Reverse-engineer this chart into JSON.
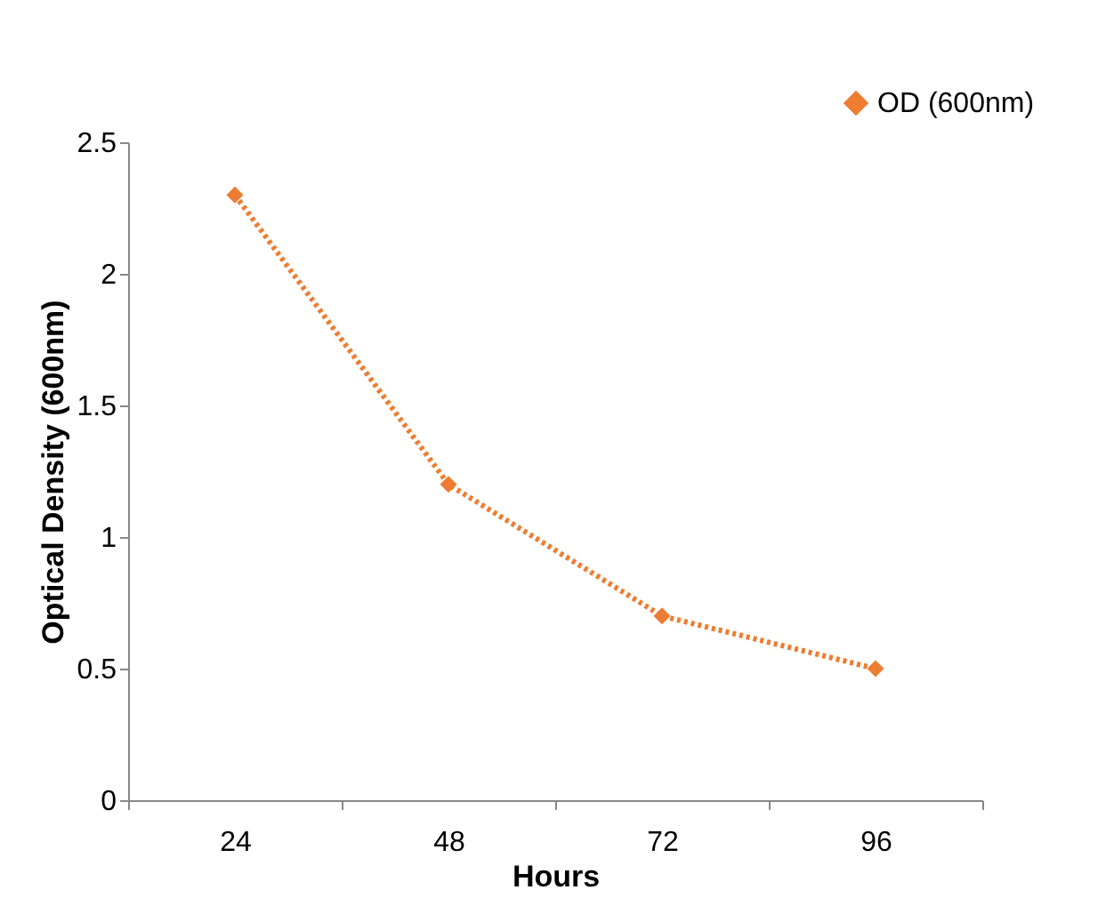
{
  "chart_data": {
    "type": "line",
    "xlabel": "Hours",
    "ylabel": "Optical Density (600nm)",
    "categories": [
      "24",
      "48",
      "72",
      "96"
    ],
    "series": [
      {
        "name": "OD (600nm)",
        "color": "#ed7d31",
        "values": [
          2.3,
          1.2,
          0.7,
          0.5
        ]
      }
    ],
    "ylim": [
      0,
      2.5
    ],
    "yticks": [
      0,
      0.5,
      1,
      1.5,
      2,
      2.5
    ],
    "grid": false,
    "legend": "top right",
    "marker": "diamond",
    "line_style": "dotted"
  }
}
